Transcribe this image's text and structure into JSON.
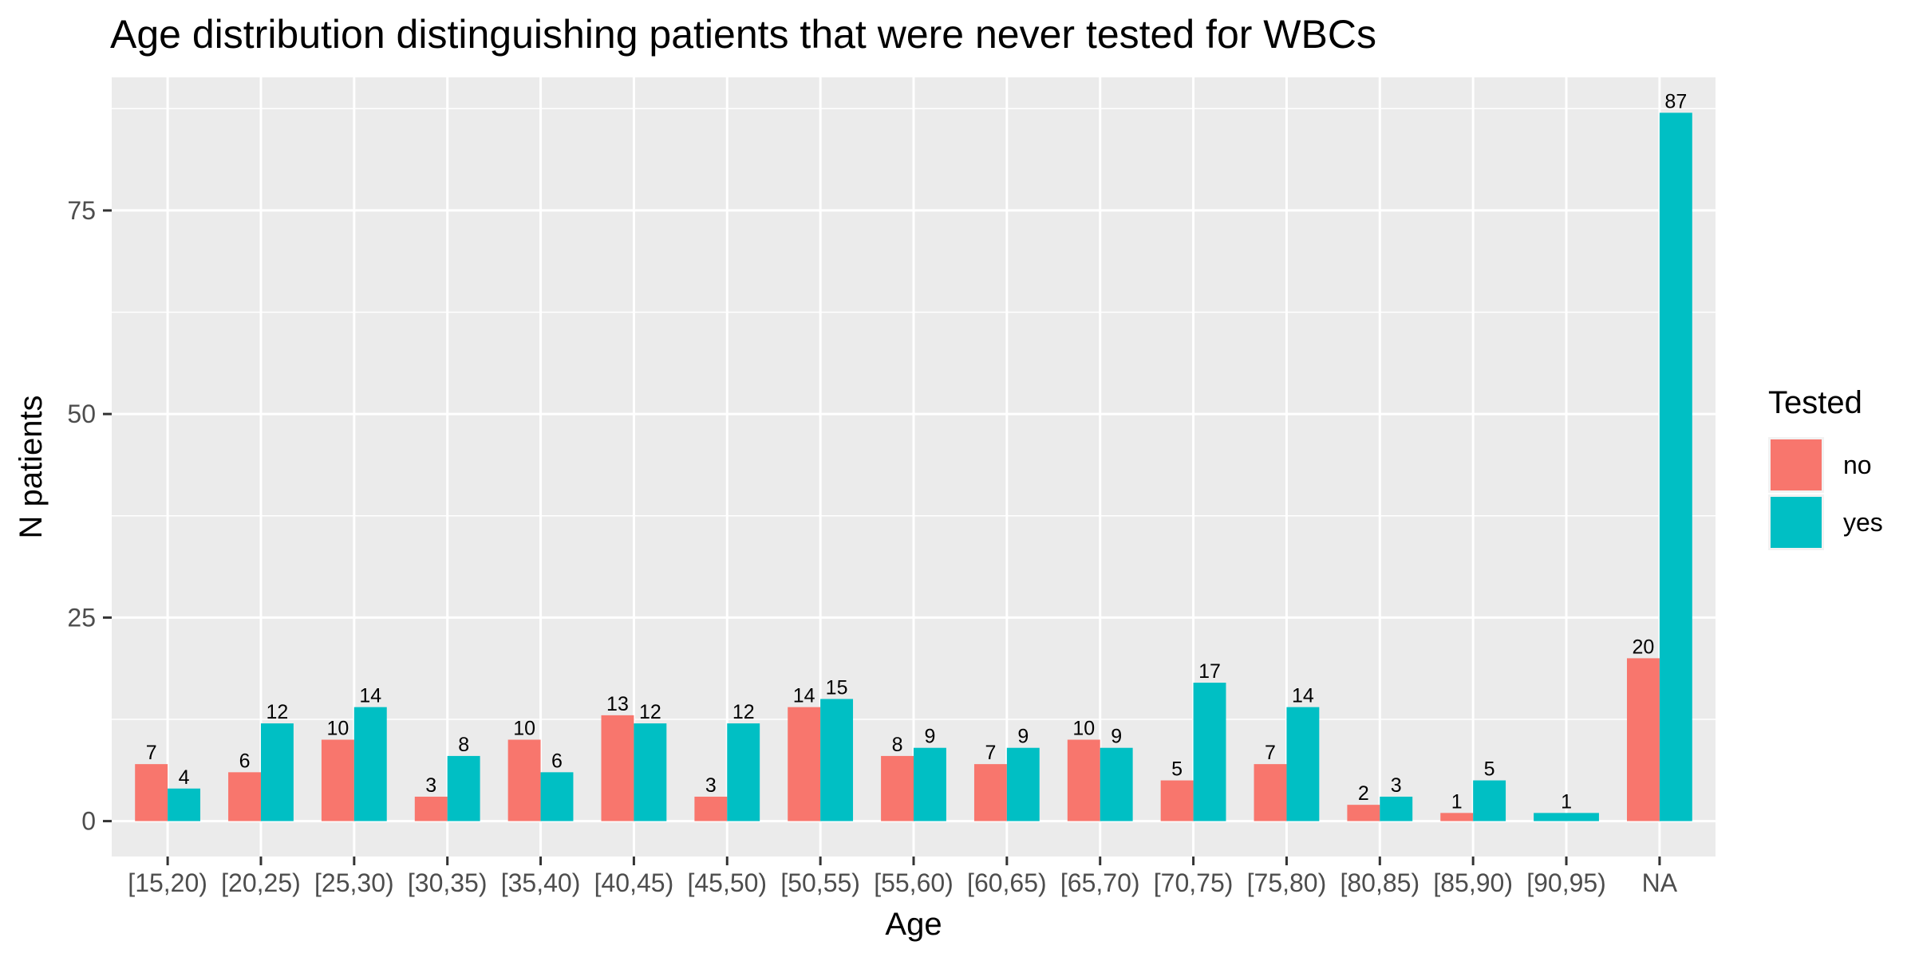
{
  "chart_data": {
    "type": "bar",
    "title": "Age distribution distinguishing patients that were never tested for WBCs",
    "xlabel": "Age",
    "ylabel": "N patients",
    "categories": [
      "[15,20)",
      "[20,25)",
      "[25,30)",
      "[30,35)",
      "[35,40)",
      "[40,45)",
      "[45,50)",
      "[50,55)",
      "[55,60)",
      "[60,65)",
      "[65,70)",
      "[70,75)",
      "[75,80)",
      "[80,85)",
      "[85,90)",
      "[90,95)",
      "NA"
    ],
    "series": [
      {
        "name": "no",
        "color": "#F8766D",
        "values": [
          7,
          6,
          10,
          3,
          10,
          13,
          3,
          14,
          8,
          7,
          10,
          5,
          7,
          2,
          1,
          null,
          20
        ]
      },
      {
        "name": "yes",
        "color": "#00BFC4",
        "values": [
          4,
          12,
          14,
          8,
          6,
          12,
          12,
          15,
          9,
          9,
          9,
          17,
          14,
          3,
          5,
          1,
          87
        ]
      }
    ],
    "ylim": [
      -4.35,
      91.35
    ],
    "yticks": [
      0,
      25,
      50,
      75
    ],
    "ytick_labels": [
      "0",
      "25",
      "50",
      "75"
    ],
    "grid": true,
    "legend": {
      "title": "Tested",
      "position": "right"
    },
    "panel_color": "#EBEBEB",
    "grid_color": "#FFFFFF"
  }
}
